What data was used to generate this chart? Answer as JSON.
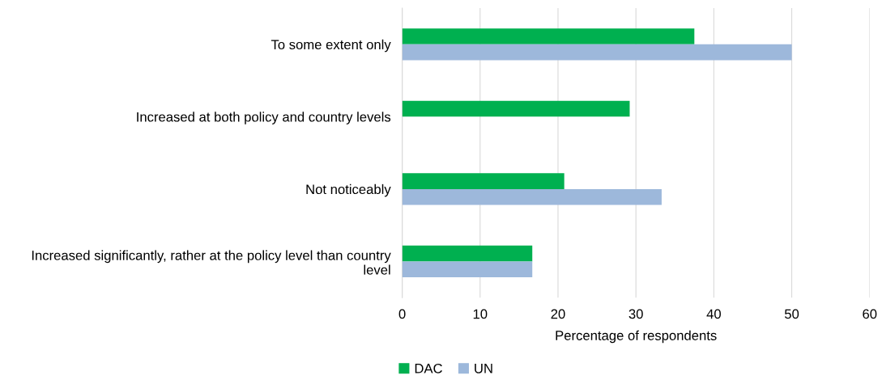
{
  "chart_data": {
    "type": "bar",
    "orientation": "horizontal",
    "categories": [
      "To some extent only",
      "Increased at both policy and country levels",
      "Not noticeably",
      "Increased significantly, rather at the policy level than country level"
    ],
    "series": [
      {
        "name": "DAC",
        "color": "#00b050",
        "values": [
          37.5,
          29.2,
          20.8,
          16.7
        ]
      },
      {
        "name": "UN",
        "color": "#9db8db",
        "values": [
          50,
          null,
          33.3,
          16.7
        ]
      }
    ],
    "xlabel": "Percentage of respondents",
    "xlim": [
      0,
      60
    ],
    "xticks": [
      0,
      10,
      20,
      30,
      40,
      50,
      60
    ],
    "grid": "x",
    "legend": "bottom"
  }
}
